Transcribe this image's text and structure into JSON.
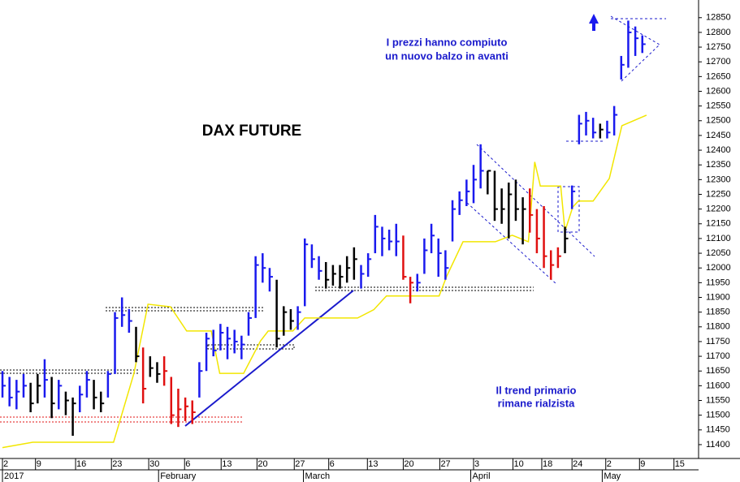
{
  "chart_data": {
    "type": "ohlc",
    "title": "DAX FUTURE",
    "annotations": [
      "I prezzi hanno compiuto",
      "un nuovo balzo in avanti",
      "Il trend primario",
      "rimane rialzista"
    ],
    "xlim": [
      -0.35,
      99
    ],
    "ylim": [
      11353,
      12910
    ],
    "yticks": [
      11400,
      11450,
      11500,
      11550,
      11600,
      11650,
      11700,
      11750,
      11800,
      11850,
      11900,
      11950,
      12000,
      12050,
      12100,
      12150,
      12200,
      12250,
      12300,
      12350,
      12400,
      12450,
      12500,
      12550,
      12600,
      12650,
      12700,
      12750,
      12800,
      12850
    ],
    "xticks": [
      {
        "value": 0,
        "label": "2"
      },
      {
        "value": 4.7,
        "label": "9"
      },
      {
        "value": 10.4,
        "label": "16"
      },
      {
        "value": 15.5,
        "label": "23"
      },
      {
        "value": 20.8,
        "label": "30"
      },
      {
        "value": 25.9,
        "label": "6"
      },
      {
        "value": 31.1,
        "label": "13"
      },
      {
        "value": 36.2,
        "label": "20"
      },
      {
        "value": 41.5,
        "label": "27"
      },
      {
        "value": 46.4,
        "label": "6"
      },
      {
        "value": 51.9,
        "label": "13"
      },
      {
        "value": 57,
        "label": "20"
      },
      {
        "value": 62.2,
        "label": "27"
      },
      {
        "value": 67,
        "label": "3"
      },
      {
        "value": 72.6,
        "label": "10"
      },
      {
        "value": 76.7,
        "label": "18"
      },
      {
        "value": 81,
        "label": "24"
      },
      {
        "value": 85.8,
        "label": "2"
      },
      {
        "value": 90.6,
        "label": "9"
      },
      {
        "value": 95.5,
        "label": "15"
      }
    ],
    "month_labels": [
      {
        "value": 0,
        "label": "2017"
      },
      {
        "value": 22.2,
        "label": "February"
      },
      {
        "value": 42.8,
        "label": "March"
      },
      {
        "value": 66.6,
        "label": "April"
      },
      {
        "value": 85.3,
        "label": "May"
      }
    ],
    "palette": {
      "b": "#1a1aee",
      "k": "#000000",
      "r": "#e01010"
    },
    "bars": {
      "high": [
        11650,
        11630,
        11620,
        11640,
        11610,
        11640,
        11690,
        11630,
        11620,
        11580,
        11560,
        11600,
        11650,
        11620,
        11580,
        11650,
        11850,
        11900,
        11860,
        11800,
        11730,
        11700,
        11680,
        11700,
        11630,
        11590,
        11560,
        11550,
        11680,
        11780,
        11790,
        11810,
        11800,
        11790,
        11770,
        11850,
        12040,
        12050,
        12000,
        11960,
        11870,
        11860,
        11870,
        12100,
        12080,
        12040,
        12020,
        12010,
        12010,
        12040,
        12070,
        12010,
        12050,
        12180,
        12140,
        12130,
        12150,
        12110,
        11970,
        11980,
        12100,
        12150,
        12100,
        12060,
        12230,
        12260,
        12300,
        12350,
        12420,
        12330,
        12330,
        12270,
        12290,
        12300,
        12240,
        12270,
        12200,
        12210,
        12060,
        12070,
        12140,
        12280,
        12520,
        12530,
        12510,
        12490,
        12500,
        12550,
        12720,
        12840,
        12820,
        12790
      ],
      "low": [
        11560,
        11530,
        11520,
        11560,
        11510,
        11540,
        11560,
        11490,
        11520,
        11500,
        11430,
        11510,
        11560,
        11520,
        11510,
        11560,
        11640,
        11800,
        11780,
        11680,
        11540,
        11630,
        11610,
        11600,
        11470,
        11460,
        11480,
        11470,
        11560,
        11650,
        11700,
        11720,
        11690,
        11710,
        11690,
        11770,
        11830,
        11950,
        11920,
        11730,
        11770,
        11790,
        11790,
        11870,
        12000,
        11960,
        11930,
        11940,
        11930,
        11950,
        11960,
        11930,
        11970,
        12050,
        12040,
        12060,
        12040,
        11960,
        11880,
        11920,
        11980,
        12050,
        11970,
        11960,
        12090,
        12180,
        12210,
        12220,
        12270,
        12250,
        12160,
        12150,
        12100,
        12160,
        12080,
        12120,
        12050,
        12000,
        11960,
        12000,
        12050,
        12200,
        12420,
        12450,
        12440,
        12440,
        12440,
        12450,
        12640,
        12680,
        12720,
        12730
      ],
      "close": [
        11600,
        11560,
        11580,
        11600,
        11540,
        11600,
        11620,
        11540,
        11600,
        11550,
        11540,
        11570,
        11620,
        11560,
        11540,
        11640,
        11830,
        11840,
        11820,
        11700,
        11590,
        11660,
        11640,
        11650,
        11500,
        11520,
        11530,
        11510,
        11650,
        11760,
        11720,
        11780,
        11760,
        11750,
        11740,
        11830,
        12010,
        12000,
        11970,
        11760,
        11850,
        11820,
        11850,
        12080,
        12030,
        11990,
        11960,
        11980,
        11970,
        12000,
        12030,
        11980,
        12030,
        12140,
        12100,
        12090,
        12090,
        11970,
        11950,
        11950,
        12060,
        12110,
        12050,
        12000,
        12200,
        12230,
        12260,
        12300,
        12330,
        12330,
        12200,
        12200,
        12250,
        12200,
        12200,
        12180,
        12100,
        12040,
        12010,
        12040,
        12100,
        12260,
        12490,
        12500,
        12460,
        12470,
        12460,
        12520,
        12690,
        12800,
        12780,
        12760
      ],
      "colors": [
        "b",
        "b",
        "b",
        "b",
        "k",
        "k",
        "b",
        "k",
        "b",
        "k",
        "k",
        "b",
        "b",
        "k",
        "k",
        "b",
        "b",
        "b",
        "b",
        "k",
        "r",
        "k",
        "k",
        "r",
        "r",
        "r",
        "r",
        "r",
        "b",
        "b",
        "b",
        "b",
        "b",
        "b",
        "b",
        "b",
        "b",
        "b",
        "b",
        "k",
        "k",
        "k",
        "b",
        "b",
        "b",
        "b",
        "k",
        "k",
        "k",
        "k",
        "k",
        "b",
        "b",
        "b",
        "b",
        "b",
        "b",
        "r",
        "r",
        "b",
        "b",
        "b",
        "b",
        "b",
        "b",
        "b",
        "b",
        "b",
        "b",
        "k",
        "k",
        "k",
        "k",
        "k",
        "k",
        "r",
        "r",
        "r",
        "r",
        "r",
        "k",
        "b",
        "b",
        "b",
        "b",
        "k",
        "b",
        "b",
        "b",
        "b",
        "b",
        "b"
      ]
    },
    "line": {
      "color": "#f2e600",
      "x": [
        0,
        4.3,
        15.8,
        18.7,
        20.7,
        23.9,
        26.2,
        29.7,
        30.9,
        34.3,
        36.7,
        37.8,
        41.3,
        43,
        50.5,
        52.8,
        54.6,
        62.1,
        63.2,
        65.5,
        70.1,
        72.5,
        74.8,
        75.7,
        76.5,
        79.4,
        80,
        81.1,
        81.9,
        84,
        86.3,
        88.1,
        91.6
      ],
      "values": [
        11390,
        11408,
        11408,
        11642,
        11877,
        11868,
        11786,
        11786,
        11642,
        11642,
        11752,
        11786,
        11786,
        11830,
        11830,
        11858,
        11905,
        11905,
        11973,
        12089,
        12089,
        12111,
        12089,
        12360,
        12278,
        12278,
        12125,
        12207,
        12227,
        12227,
        12304,
        12483,
        12519
      ]
    }
  }
}
